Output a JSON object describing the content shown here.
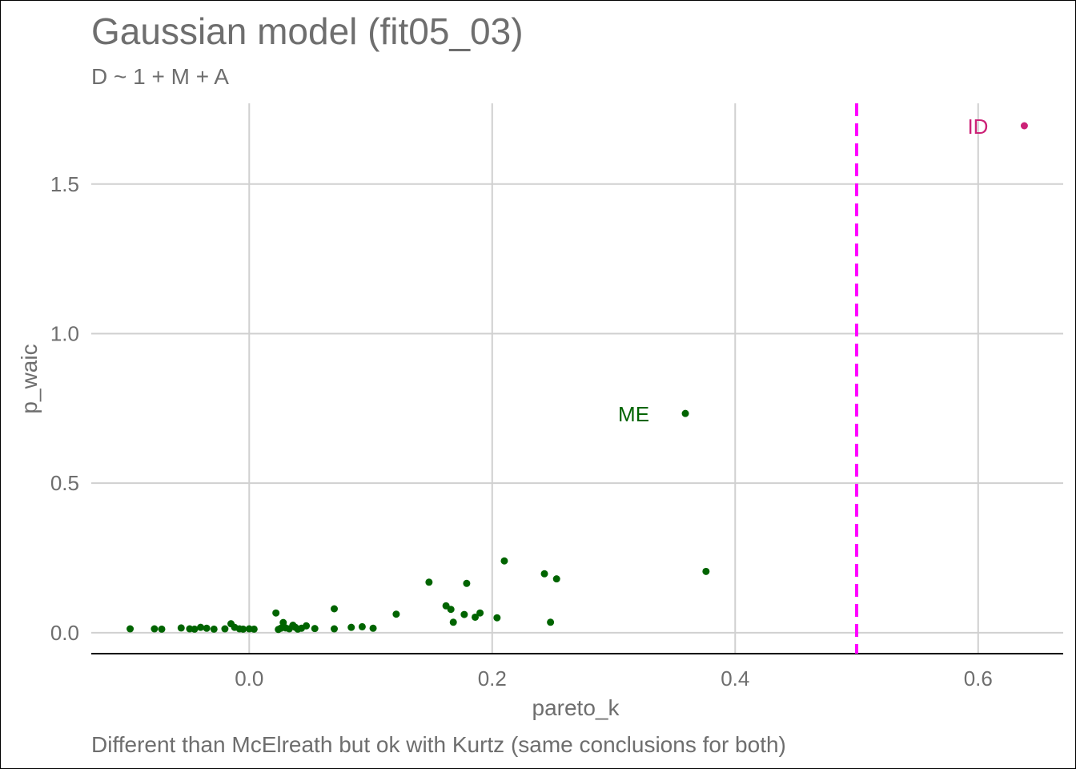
{
  "chart_data": {
    "type": "scatter",
    "title": "Gaussian model (fit05_03)",
    "subtitle": "D ~ 1 + M + A",
    "xlabel": "pareto_k",
    "ylabel": "p_waic",
    "caption": "Different than McElreath but ok with Kurtz (same conclusions for both)",
    "xlim": [
      -0.13,
      0.67
    ],
    "ylim": [
      -0.07,
      1.77
    ],
    "x_ticks": [
      0.0,
      0.2,
      0.4,
      0.6
    ],
    "x_tick_labels": [
      "0.0",
      "0.2",
      "0.4",
      "0.6"
    ],
    "y_ticks": [
      0.0,
      0.5,
      1.0,
      1.5
    ],
    "y_tick_labels": [
      "0.0",
      "0.5",
      "1.0",
      "1.5"
    ],
    "grid": true,
    "vline": {
      "x": 0.5,
      "style": "dashed",
      "color": "#ff00ff"
    },
    "colors": {
      "normal": "#006400",
      "flagged": "#cc2277"
    },
    "points": [
      {
        "x": -0.098,
        "y": 0.013
      },
      {
        "x": -0.078,
        "y": 0.013
      },
      {
        "x": -0.072,
        "y": 0.012
      },
      {
        "x": -0.056,
        "y": 0.016
      },
      {
        "x": -0.049,
        "y": 0.013
      },
      {
        "x": -0.045,
        "y": 0.012
      },
      {
        "x": -0.04,
        "y": 0.018
      },
      {
        "x": -0.035,
        "y": 0.015
      },
      {
        "x": -0.029,
        "y": 0.012
      },
      {
        "x": -0.02,
        "y": 0.013
      },
      {
        "x": -0.015,
        "y": 0.03
      },
      {
        "x": -0.012,
        "y": 0.018
      },
      {
        "x": -0.008,
        "y": 0.013
      },
      {
        "x": -0.005,
        "y": 0.012
      },
      {
        "x": 0.0,
        "y": 0.013
      },
      {
        "x": 0.004,
        "y": 0.012
      },
      {
        "x": 0.022,
        "y": 0.066
      },
      {
        "x": 0.024,
        "y": 0.011
      },
      {
        "x": 0.026,
        "y": 0.015
      },
      {
        "x": 0.028,
        "y": 0.034
      },
      {
        "x": 0.03,
        "y": 0.016
      },
      {
        "x": 0.033,
        "y": 0.013
      },
      {
        "x": 0.036,
        "y": 0.025
      },
      {
        "x": 0.038,
        "y": 0.018
      },
      {
        "x": 0.04,
        "y": 0.012
      },
      {
        "x": 0.043,
        "y": 0.015
      },
      {
        "x": 0.047,
        "y": 0.023
      },
      {
        "x": 0.054,
        "y": 0.014
      },
      {
        "x": 0.07,
        "y": 0.08
      },
      {
        "x": 0.07,
        "y": 0.013
      },
      {
        "x": 0.084,
        "y": 0.018
      },
      {
        "x": 0.093,
        "y": 0.02
      },
      {
        "x": 0.102,
        "y": 0.015
      },
      {
        "x": 0.121,
        "y": 0.062
      },
      {
        "x": 0.148,
        "y": 0.169
      },
      {
        "x": 0.162,
        "y": 0.09
      },
      {
        "x": 0.166,
        "y": 0.078
      },
      {
        "x": 0.168,
        "y": 0.035
      },
      {
        "x": 0.177,
        "y": 0.061
      },
      {
        "x": 0.179,
        "y": 0.165
      },
      {
        "x": 0.186,
        "y": 0.052
      },
      {
        "x": 0.19,
        "y": 0.066
      },
      {
        "x": 0.204,
        "y": 0.05
      },
      {
        "x": 0.21,
        "y": 0.24
      },
      {
        "x": 0.243,
        "y": 0.197
      },
      {
        "x": 0.248,
        "y": 0.035
      },
      {
        "x": 0.253,
        "y": 0.18
      },
      {
        "x": 0.376,
        "y": 0.205
      },
      {
        "x": 0.359,
        "y": 0.733,
        "label": "ME",
        "flag": "normal"
      },
      {
        "x": 0.638,
        "y": 1.695,
        "label": "ID",
        "flag": "flagged"
      }
    ]
  }
}
